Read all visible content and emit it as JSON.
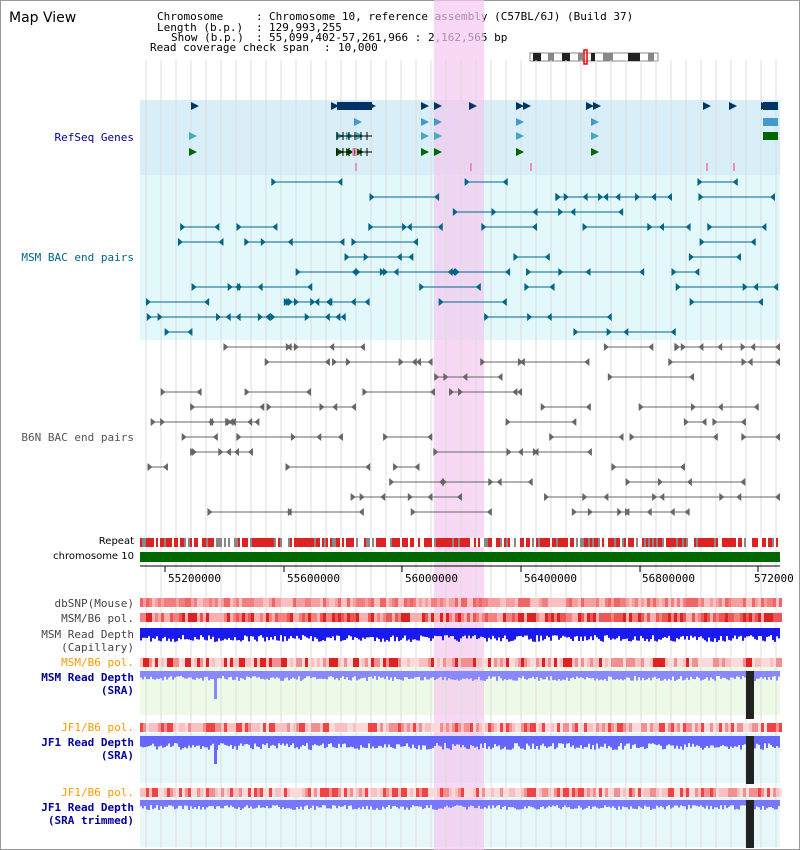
{
  "window": {
    "title": "Map View"
  },
  "info": {
    "chromosome_label": "Chromosome",
    "chromosome_value": "Chromosome 10, reference assembly (C57BL/6J) (Build 37)",
    "length_label": "Length (b.p.)",
    "length_value": "129,993,255",
    "show_label": "Show (b.p.)",
    "show_value": "55,099,402-57,261,966 : 2,162,565 bp",
    "read_cov_label": "Read coverage check span",
    "read_cov_value": "10,000"
  },
  "tracks": {
    "refseq": {
      "label": "RefSeq Genes",
      "color": "#000099"
    },
    "msm_bac": {
      "label": "MSM BAC end pairs",
      "color": "#006688"
    },
    "b6n_bac": {
      "label": "B6N BAC end pairs",
      "color": "#666666"
    },
    "repeat": {
      "label": "Repeat"
    },
    "chromosome": {
      "label": "chromosome 10"
    },
    "dbsnp": {
      "label": "dbSNP(Mouse)"
    },
    "msm_b6_pol_1": {
      "label": "MSM/B6 pol."
    },
    "msm_read_depth_cap": {
      "label_line1": "MSM Read Depth",
      "label_line2": "(Capillary)"
    },
    "msm_b6_pol_2": {
      "label": "MSM/B6 pol.",
      "color": "#ff9900"
    },
    "msm_read_depth_sra": {
      "label_line1": "MSM Read Depth",
      "label_line2": "(SRA)",
      "color": "#000099"
    },
    "jf1_b6_pol_1": {
      "label": "JF1/B6 pol.",
      "color": "#ff9900"
    },
    "jf1_read_depth_sra": {
      "label_line1": "JF1 Read Depth",
      "label_line2": "(SRA)",
      "color": "#000099"
    },
    "jf1_b6_pol_2": {
      "label": "JF1/B6 pol.",
      "color": "#ff9900"
    },
    "jf1_read_depth_trim": {
      "label_line1": "JF1 Read Depth",
      "label_line2": "(SRA trimmed)",
      "color": "#000099"
    }
  },
  "axis": {
    "ticks": [
      "55200000",
      "55600000",
      "56000000",
      "56400000",
      "56800000",
      "572000"
    ]
  },
  "colors": {
    "refseq_bg": "#d8eef8",
    "msm_bg": "#e2f8fa",
    "highlight": "#f8d8f4",
    "chromosome": "#006600",
    "read_depth_dark": "#1a1aee",
    "read_depth_light": "#7777ff"
  }
}
